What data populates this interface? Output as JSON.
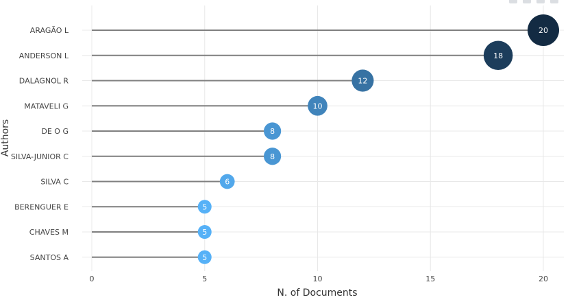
{
  "chart_data": {
    "type": "lollipop",
    "categories": [
      "ARAGÃO L",
      "ANDERSON L",
      "DALAGNOL R",
      "MATAVELI G",
      "DE O G",
      "SILVA-JUNIOR C",
      "SILVA C",
      "BERENGUER E",
      "CHAVES M",
      "SANTOS A"
    ],
    "values": [
      20,
      18,
      12,
      10,
      8,
      8,
      6,
      5,
      5,
      5
    ],
    "xlabel": "N. of Documents",
    "ylabel": "Authors",
    "xlim": [
      0,
      20
    ],
    "xticks": [
      0,
      5,
      10,
      15,
      20
    ],
    "grid": true,
    "colors": {
      "stem": "#7f7f7f",
      "grid": "#e8e8e8",
      "low": "#56b1f7",
      "high": "#132b43",
      "axis_text": "#444444"
    }
  }
}
